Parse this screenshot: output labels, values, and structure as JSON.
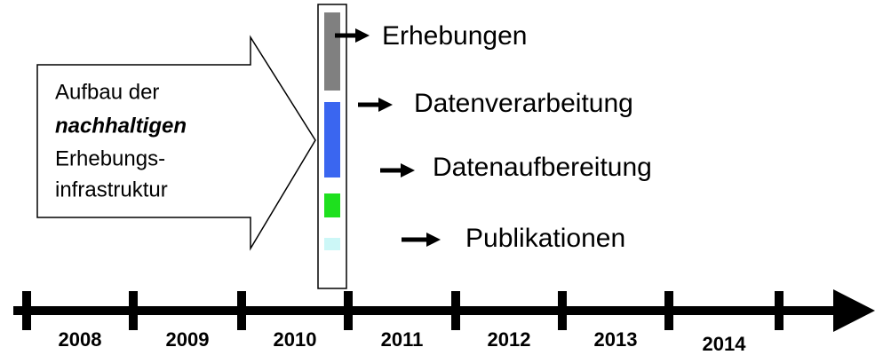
{
  "callout": {
    "lines": [
      "Aufbau der",
      "nachhaltigen",
      "Erhebungs-",
      "infrastruktur"
    ]
  },
  "steps": [
    "Erhebungen",
    "Datenverarbeitung",
    "Datenaufbereitung",
    "Publikationen"
  ],
  "timeline": {
    "years": [
      "2008",
      "2009",
      "2010",
      "2011",
      "2012",
      "2013",
      "2014"
    ]
  }
}
